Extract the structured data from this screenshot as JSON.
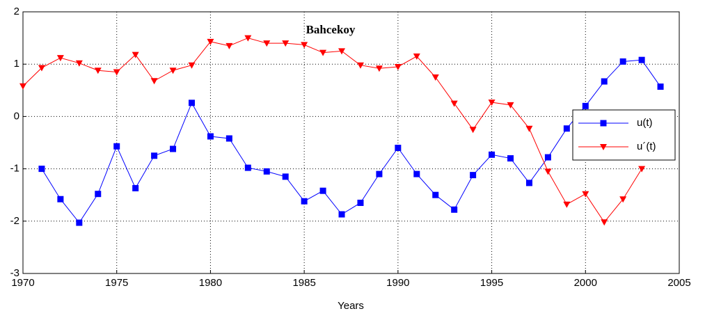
{
  "chart_data": {
    "type": "line",
    "title": "Bahcekoy",
    "x_label": "Years",
    "x": [
      1970,
      1971,
      1972,
      1973,
      1974,
      1975,
      1976,
      1977,
      1978,
      1979,
      1980,
      1981,
      1982,
      1983,
      1984,
      1985,
      1986,
      1987,
      1988,
      1989,
      1990,
      1991,
      1992,
      1993,
      1994,
      1995,
      1996,
      1997,
      1998,
      1999,
      2000,
      2001,
      2002,
      2003,
      2004
    ],
    "series": [
      {
        "name": "u(t)",
        "color": "#0000ff",
        "marker": "square",
        "values": [
          null,
          -1.0,
          -1.58,
          -2.03,
          -1.48,
          -0.57,
          -1.37,
          -0.75,
          -0.62,
          0.26,
          -0.38,
          -0.42,
          -0.98,
          -1.05,
          -1.15,
          -1.62,
          -1.42,
          -1.87,
          -1.65,
          -1.1,
          -0.6,
          -1.1,
          -1.5,
          -1.78,
          -1.12,
          -0.73,
          -0.8,
          -1.27,
          -0.78,
          -0.23,
          0.2,
          0.67,
          1.05,
          1.08,
          0.57
        ]
      },
      {
        "name": "u´(t)",
        "color": "#ff0000",
        "marker": "triangle-down",
        "values": [
          0.58,
          0.93,
          1.12,
          1.02,
          0.88,
          0.85,
          1.18,
          0.68,
          0.88,
          0.98,
          1.43,
          1.35,
          1.5,
          1.4,
          1.4,
          1.37,
          1.22,
          1.25,
          0.98,
          0.92,
          0.95,
          1.15,
          0.75,
          0.25,
          -0.25,
          0.27,
          0.22,
          -0.23,
          -1.05,
          -1.68,
          -1.48,
          -2.02,
          -1.58,
          -1.0,
          null
        ]
      }
    ],
    "xlim": [
      1970,
      2005
    ],
    "xticks": [
      1970,
      1975,
      1980,
      1985,
      1990,
      1995,
      2000,
      2005
    ],
    "ylim": [
      -3,
      2
    ],
    "yticks": [
      -3,
      -2,
      -1,
      0,
      1,
      2
    ],
    "grid": true,
    "legend": "right"
  }
}
